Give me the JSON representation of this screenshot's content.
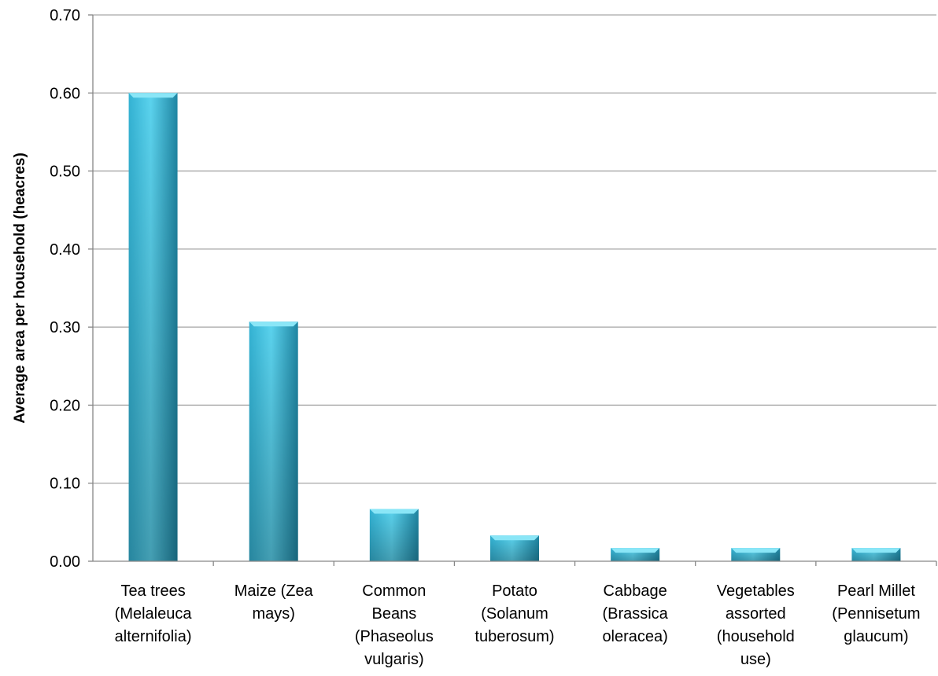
{
  "chart_data": {
    "type": "bar",
    "title": "",
    "xlabel": "",
    "ylabel": "Average area per household (heacres)",
    "ylim": [
      0,
      0.7
    ],
    "yticks": [
      "0.00",
      "0.10",
      "0.20",
      "0.30",
      "0.40",
      "0.50",
      "0.60",
      "0.70"
    ],
    "grid": true,
    "legend": "none",
    "categories": [
      [
        "Tea trees",
        "(Melaleuca",
        "alternifolia)"
      ],
      [
        "Maize (Zea",
        "mays)"
      ],
      [
        "Common",
        "Beans",
        "(Phaseolus",
        "vulgaris)"
      ],
      [
        "Potato",
        "(Solanum",
        "tuberosum)"
      ],
      [
        "Cabbage",
        "(Brassica",
        "oleracea)"
      ],
      [
        "Vegetables",
        "assorted",
        "(household",
        "use)"
      ],
      [
        "Pearl Millet",
        "(Pennisetum",
        "glaucum)"
      ]
    ],
    "values": [
      0.6,
      0.307,
      0.067,
      0.033,
      0.017,
      0.017,
      0.017
    ],
    "colors": {
      "bar_light": "#5bd3ee",
      "bar_mid": "#33b2d3",
      "bar_dark": "#1f86a3",
      "bar_top": "#8ae6f7",
      "grid": "#a6a6a6",
      "axis": "#868686"
    }
  }
}
